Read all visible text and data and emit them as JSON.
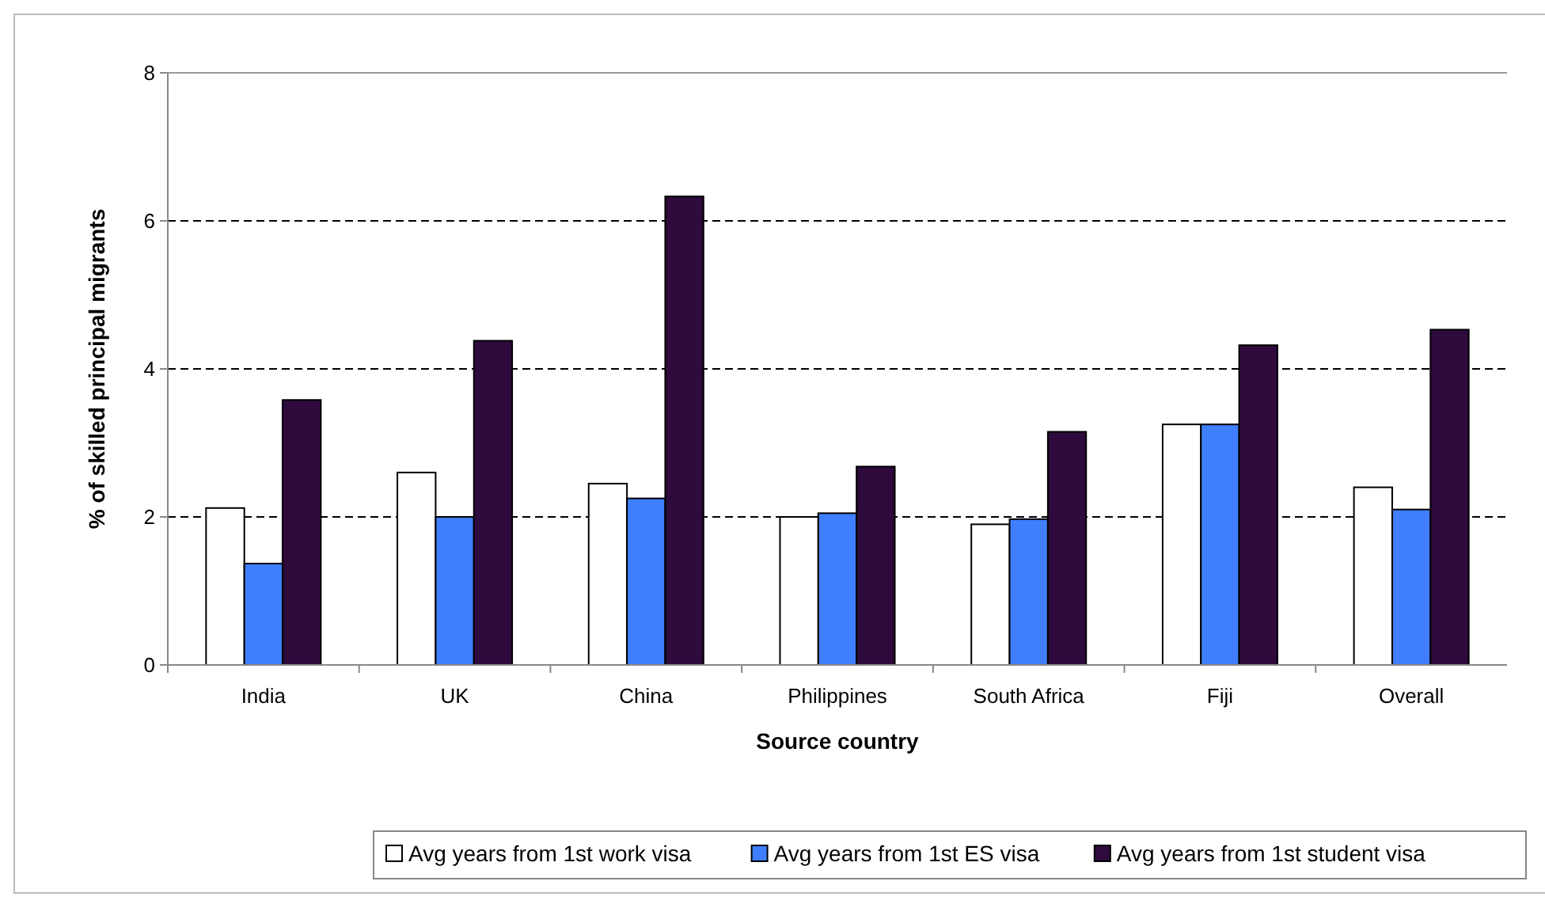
{
  "chart_data": {
    "type": "bar",
    "xlabel": "Source country",
    "ylabel": "% of skilled principal migrants",
    "categories": [
      "India",
      "UK",
      "China",
      "Philippines",
      "South Africa",
      "Fiji",
      "Overall"
    ],
    "series": [
      {
        "name": "Avg years from 1st work visa",
        "color": "#ffffff",
        "values": [
          2.12,
          2.6,
          2.45,
          2.0,
          1.9,
          3.25,
          2.4
        ]
      },
      {
        "name": "Avg years from 1st ES visa",
        "color": "#3f7fff",
        "values": [
          1.37,
          2.0,
          2.25,
          2.05,
          1.97,
          3.25,
          2.1
        ]
      },
      {
        "name": "Avg years from 1st student visa",
        "color": "#2e0a3d",
        "values": [
          3.58,
          4.38,
          6.33,
          2.68,
          3.15,
          4.32,
          4.53
        ]
      }
    ],
    "ylim": [
      0,
      8
    ],
    "yticks": [
      0,
      2,
      4,
      6,
      8
    ],
    "grid": "y",
    "legend": "bottom"
  }
}
